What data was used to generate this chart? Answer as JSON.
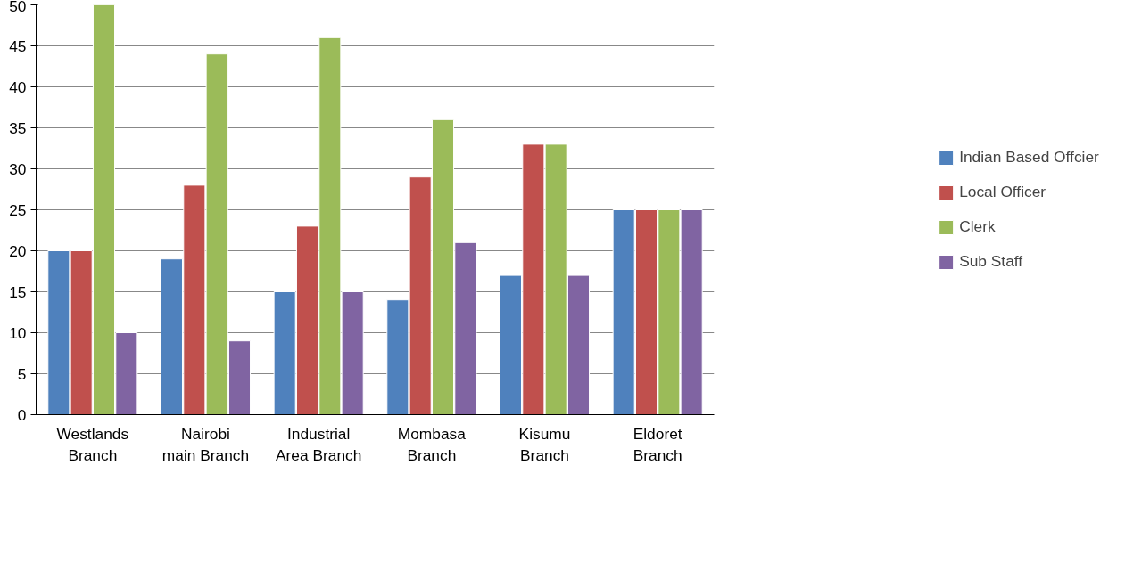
{
  "chart_data": {
    "type": "bar",
    "categories": [
      "Westlands Branch",
      "Nairobi main Branch",
      "Industrial Area Branch",
      "Mombasa Branch",
      "Kisumu Branch",
      "Eldoret Branch"
    ],
    "series": [
      {
        "name": "Indian Based Offcier",
        "color": "#4f81bd",
        "values": [
          20,
          19,
          15,
          14,
          17,
          25
        ]
      },
      {
        "name": "Local Officer",
        "color": "#c0504d",
        "values": [
          20,
          28,
          23,
          29,
          33,
          25
        ]
      },
      {
        "name": "Clerk",
        "color": "#9bbb59",
        "values": [
          50,
          44,
          46,
          36,
          33,
          25
        ]
      },
      {
        "name": "Sub Staff",
        "color": "#8064a2",
        "values": [
          10,
          9,
          15,
          21,
          17,
          25
        ]
      }
    ],
    "ylim": [
      0,
      50
    ],
    "yticks": [
      0,
      5,
      10,
      15,
      20,
      25,
      30,
      35,
      40,
      45,
      50
    ],
    "grid": "y",
    "legend": "right"
  }
}
